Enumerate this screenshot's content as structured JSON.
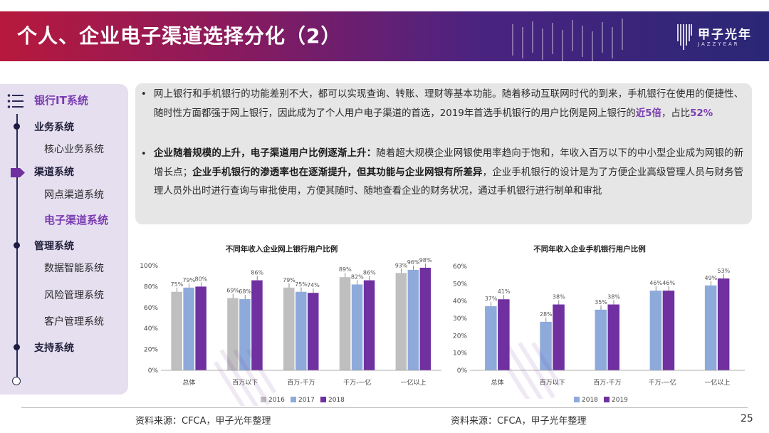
{
  "header": {
    "title": "个人、企业电子渠道选择分化（2）",
    "brand_name": "甲子光年",
    "brand_sub": "JAZZYEAR"
  },
  "sidebar": {
    "heading": "银行IT系统",
    "sections": [
      {
        "label": "业务系统",
        "items": [
          "核心业务系统"
        ]
      },
      {
        "label": "渠道系统",
        "items": [
          "网点渠道系统",
          "电子渠道系统"
        ],
        "active_item": "电子渠道系统"
      },
      {
        "label": "管理系统",
        "items": [
          "数据智能系统",
          "风险管理系统",
          "客户管理系统"
        ]
      },
      {
        "label": "支持系统",
        "items": []
      }
    ]
  },
  "text": {
    "p1_a": "网上银行和手机银行的功能差别不大，都可以实现查询、转账、理财等基本功能。随着移动互联网时代的到来，手机银行在使用的便捷性、随时性方面都强于网上银行，因此成为了个人用户电子渠道的首选，2019年首选手机银行的用户比例是网上银行的",
    "p1_hl1": "近5倍",
    "p1_b": "，占比",
    "p1_hl2": "52%",
    "p2_bold1": "企业随着规模的上升，电子渠道用户比例逐渐上升：",
    "p2_a": "随着超大规模企业网银使用率趋向于饱和，年收入百万以下的中小型企业成为网银的新增长点；",
    "p2_bold2": "企业手机银行的渗透率也在逐渐提升，但其功能与企业网银有所差异",
    "p2_b": "，企业手机银行的设计是为了方便企业高级管理人员与财务管理人员外出时进行查询与审批使用，方便其随时、随地查看企业的财务状况，通过手机银行进行制单和审批"
  },
  "chart_data": [
    {
      "type": "bar",
      "title": "不同年收入企业网上银行用户比例",
      "categories": [
        "总体",
        "百万以下",
        "百万-千万",
        "千万-一亿",
        "一亿以上"
      ],
      "series": [
        {
          "name": "2016",
          "values": [
            75,
            69,
            79,
            89,
            93
          ],
          "labels": [
            "75%",
            "69%",
            "79%",
            "89%",
            "93%"
          ]
        },
        {
          "name": "2017",
          "values": [
            79,
            68,
            75,
            82,
            96
          ],
          "labels": [
            "79%",
            "68%",
            "75%",
            "82%",
            "96%"
          ]
        },
        {
          "name": "2018",
          "values": [
            80,
            86,
            74,
            86,
            98
          ],
          "labels": [
            "80%",
            "86%",
            "74%",
            "86%",
            "98%"
          ]
        }
      ],
      "ylim": [
        0,
        100
      ],
      "yticks": [
        "0%",
        "20%",
        "40%",
        "60%",
        "80%",
        "100%"
      ],
      "legend": "bottom",
      "colors": [
        "#bfbfbf",
        "#8eaadb",
        "#7030a0"
      ]
    },
    {
      "type": "bar",
      "title": "不同年收入企业手机银行用户比例",
      "categories": [
        "总体",
        "百万以下",
        "百万-千万",
        "千万-一亿",
        "一亿以上"
      ],
      "series": [
        {
          "name": "2018",
          "values": [
            37,
            28,
            35,
            46,
            49
          ],
          "labels": [
            "37%",
            "28%",
            "35%",
            "46%",
            "49%"
          ]
        },
        {
          "name": "2019",
          "values": [
            41,
            38,
            38,
            46,
            53
          ],
          "labels": [
            "41%",
            "38%",
            "38%",
            "46%",
            "53%"
          ]
        }
      ],
      "ylim": [
        0,
        60
      ],
      "yticks": [
        "0%",
        "10%",
        "20%",
        "30%",
        "40%",
        "50%",
        "60%"
      ],
      "legend": "bottom",
      "colors": [
        "#8eaadb",
        "#7030a0"
      ]
    }
  ],
  "footer": {
    "source_left": "资料来源：CFCA，甲子光年整理",
    "source_right": "资料来源：CFCA，甲子光年整理",
    "page": "25"
  }
}
